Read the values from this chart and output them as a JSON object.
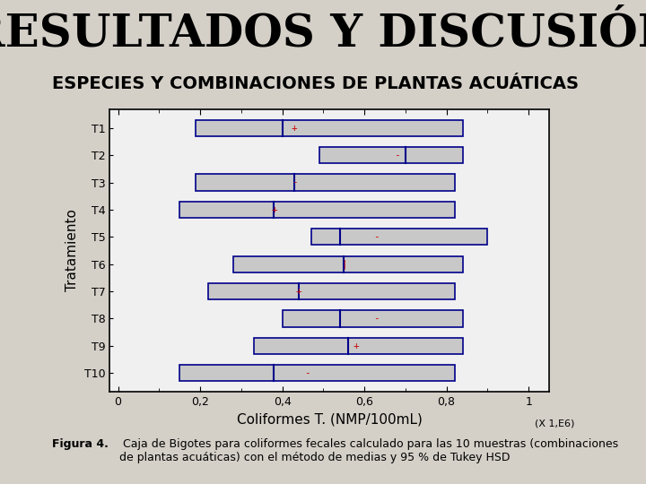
{
  "title": "RESULTADOS Y DISCUSIÓN",
  "subtitle": "ESPECIES Y COMBINACIONES DE PLANTAS ACUÁTICAS",
  "xlabel": "Coliformes T. (NMP/100mL)",
  "xlabel_note": "(X 1,E6)",
  "ylabel": "Tratamiento",
  "treatments": [
    "T1",
    "T2",
    "T3",
    "T4",
    "T5",
    "T6",
    "T7",
    "T8",
    "T9",
    "T10"
  ],
  "xlim": [
    -0.02,
    1.05
  ],
  "xticks": [
    0,
    0.2,
    0.4,
    0.6,
    0.8,
    1.0
  ],
  "xticklabels": [
    "0",
    "0,2",
    "0,4",
    "0,6",
    "0,8",
    "1"
  ],
  "caption_bold": "Figura 4.",
  "caption_normal": " Caja de Bigotes para coliformes fecales calculado para las 10 muestras (combinaciones\nde plantas acuáticas) con el método de medias y 95 % de Tukey HSD",
  "boxes": [
    {
      "label": "T1",
      "q1": 0.19,
      "med": 0.4,
      "q3": 0.84,
      "mean": 0.43,
      "mean_sign": "+"
    },
    {
      "label": "T2",
      "q1": 0.49,
      "med": 0.7,
      "q3": 0.84,
      "mean": 0.68,
      "mean_sign": "-"
    },
    {
      "label": "T3",
      "q1": 0.19,
      "med": 0.43,
      "q3": 0.82,
      "mean": 0.43,
      "mean_sign": "-"
    },
    {
      "label": "T4",
      "q1": 0.15,
      "med": 0.38,
      "q3": 0.82,
      "mean": 0.38,
      "mean_sign": "+"
    },
    {
      "label": "T5",
      "q1": 0.47,
      "med": 0.54,
      "q3": 0.9,
      "mean": 0.63,
      "mean_sign": "-"
    },
    {
      "label": "T6",
      "q1": 0.28,
      "med": 0.55,
      "q3": 0.84,
      "mean": 0.55,
      "mean_sign": "|"
    },
    {
      "label": "T7",
      "q1": 0.22,
      "med": 0.44,
      "q3": 0.82,
      "mean": 0.44,
      "mean_sign": "+"
    },
    {
      "label": "T8",
      "q1": 0.4,
      "med": 0.54,
      "q3": 0.84,
      "mean": 0.63,
      "mean_sign": "-"
    },
    {
      "label": "T9",
      "q1": 0.33,
      "med": 0.56,
      "q3": 0.84,
      "mean": 0.58,
      "mean_sign": "+"
    },
    {
      "label": "T10",
      "q1": 0.15,
      "med": 0.38,
      "q3": 0.82,
      "mean": 0.46,
      "mean_sign": "-"
    }
  ],
  "box_facecolor": "#c8c8c8",
  "box_edgecolor": "#00008B",
  "median_color": "#00008B",
  "mean_color": "#CC0000",
  "bg_color": "#d4d0c8",
  "plot_bg_color": "#f0f0f0",
  "plot_border_color": "#000000",
  "title_fontsize": 36,
  "subtitle_fontsize": 14,
  "axis_label_fontsize": 11,
  "tick_fontsize": 9,
  "caption_fontsize": 9
}
